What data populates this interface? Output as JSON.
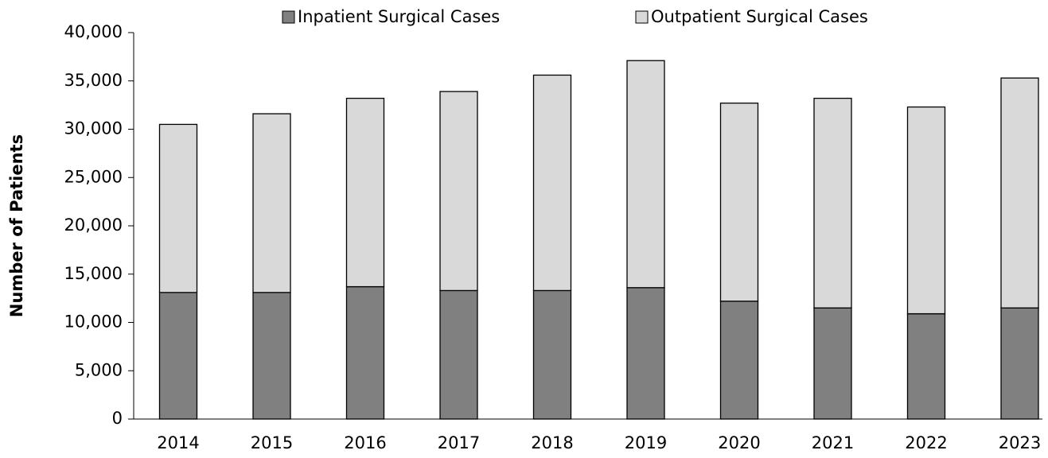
{
  "chart_data": {
    "type": "stacked_bar",
    "y_label": "Number of Patients",
    "categories": [
      "2014",
      "2015",
      "2016",
      "2017",
      "2018",
      "2019",
      "2020",
      "2021",
      "2022",
      "2023"
    ],
    "series": [
      {
        "name": "Inpatient Surgical Cases",
        "color": "#808080",
        "values": [
          13100,
          13100,
          13700,
          13300,
          13300,
          13600,
          12200,
          11500,
          10900,
          11500
        ]
      },
      {
        "name": "Outpatient Surgical Cases",
        "color": "#d9d9d9",
        "values": [
          17400,
          18500,
          19500,
          20600,
          22300,
          23500,
          20500,
          21700,
          21400,
          23800
        ]
      }
    ],
    "ylim": [
      0,
      40000
    ],
    "yticks": [
      0,
      {
        "value": 5000,
        "label": "5,000"
      },
      {
        "value": 10000,
        "label": "10,000"
      },
      {
        "value": 15000,
        "label": "15,000"
      },
      {
        "value": 20000,
        "label": "20,000"
      },
      {
        "value": 25000,
        "label": "25,000"
      },
      {
        "value": 30000,
        "label": "30,000"
      },
      {
        "value": 35000,
        "label": "35,000"
      },
      {
        "value": 40000,
        "label": "40,000"
      }
    ],
    "grid": false,
    "legend": "top"
  }
}
